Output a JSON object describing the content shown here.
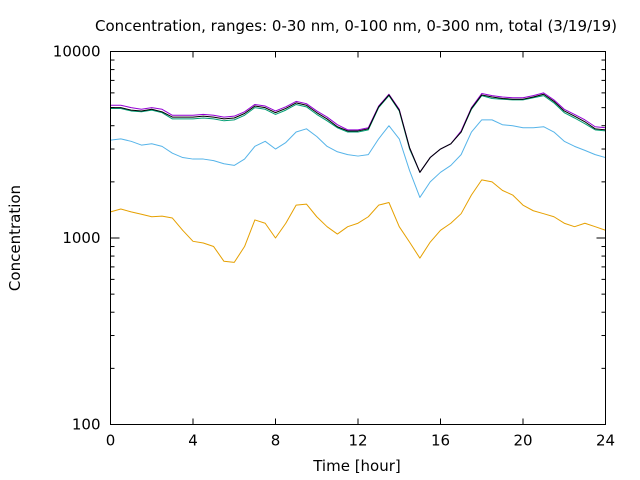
{
  "chart_data": {
    "type": "line",
    "title": "Concentration, ranges: 0-30 nm, 0-100 nm, 0-300 nm, total (3/19/19)",
    "xlabel": "Time [hour]",
    "ylabel": "Concentration",
    "xlim": [
      0,
      24
    ],
    "ylim": [
      100,
      10000
    ],
    "yscale": "log",
    "grid": false,
    "legend": "none",
    "x_ticks": [
      0,
      4,
      8,
      12,
      16,
      20,
      24
    ],
    "x_tick_labels": [
      "0",
      "4",
      "8",
      "12",
      "16",
      "20",
      "24"
    ],
    "y_ticks": [
      100,
      1000,
      10000
    ],
    "y_tick_labels": [
      "100",
      "1000",
      "10000"
    ],
    "x": [
      0,
      0.5,
      1,
      1.5,
      2,
      2.5,
      3,
      3.5,
      4,
      4.5,
      5,
      5.5,
      6,
      6.5,
      7,
      7.5,
      8,
      8.5,
      9,
      9.5,
      10,
      10.5,
      11,
      11.5,
      12,
      12.5,
      13,
      13.5,
      14,
      14.5,
      15,
      15.5,
      16,
      16.5,
      17,
      17.5,
      18,
      18.5,
      19,
      19.5,
      20,
      20.5,
      21,
      21.5,
      22,
      22.5,
      23,
      23.5,
      24
    ],
    "series": [
      {
        "color": "#e6a000",
        "values": [
          1380,
          1430,
          1380,
          1340,
          1300,
          1310,
          1280,
          1100,
          960,
          940,
          900,
          750,
          740,
          900,
          1250,
          1200,
          1000,
          1200,
          1500,
          1520,
          1300,
          1150,
          1050,
          1150,
          1200,
          1300,
          1500,
          1550,
          1150,
          950,
          780,
          950,
          1100,
          1200,
          1350,
          1700,
          2050,
          2000,
          1800,
          1700,
          1500,
          1400,
          1350,
          1300,
          1200,
          1150,
          1200,
          1150,
          1100
        ]
      },
      {
        "color": "#56b4e9",
        "values": [
          3350,
          3400,
          3300,
          3150,
          3200,
          3100,
          2850,
          2700,
          2650,
          2650,
          2600,
          2500,
          2450,
          2650,
          3100,
          3300,
          3000,
          3250,
          3700,
          3850,
          3500,
          3100,
          2900,
          2800,
          2750,
          2800,
          3400,
          4000,
          3400,
          2300,
          1650,
          2000,
          2250,
          2450,
          2800,
          3700,
          4300,
          4300,
          4050,
          4000,
          3900,
          3900,
          3950,
          3700,
          3300,
          3100,
          2950,
          2800,
          2700
        ]
      },
      {
        "color": "#009e73",
        "values": [
          4950,
          4950,
          4800,
          4750,
          4850,
          4700,
          4350,
          4350,
          4350,
          4400,
          4350,
          4250,
          4300,
          4550,
          5000,
          4900,
          4600,
          4850,
          5200,
          5050,
          4600,
          4250,
          3900,
          3700,
          3700,
          3800,
          5000,
          5800,
          4800,
          3000,
          2250,
          2700,
          3000,
          3200,
          3700,
          4900,
          5800,
          5600,
          5550,
          5500,
          5500,
          5650,
          5800,
          5300,
          4700,
          4400,
          4100,
          3800,
          3750
        ]
      },
      {
        "color": "#9400d3",
        "values": [
          5150,
          5150,
          5000,
          4900,
          5000,
          4900,
          4550,
          4550,
          4550,
          4600,
          4550,
          4450,
          4500,
          4750,
          5200,
          5100,
          4800,
          5050,
          5400,
          5250,
          4800,
          4450,
          4050,
          3800,
          3800,
          3900,
          5100,
          5900,
          4900,
          3050,
          2250,
          2700,
          3000,
          3200,
          3750,
          5000,
          5950,
          5800,
          5700,
          5650,
          5650,
          5800,
          6000,
          5500,
          4900,
          4600,
          4300,
          3950,
          3900
        ]
      },
      {
        "color": "#000000",
        "values": [
          5000,
          5000,
          4850,
          4800,
          4900,
          4750,
          4450,
          4450,
          4450,
          4500,
          4450,
          4350,
          4400,
          4650,
          5100,
          5000,
          4700,
          4950,
          5300,
          5150,
          4700,
          4350,
          3950,
          3750,
          3750,
          3850,
          5050,
          5850,
          4850,
          3050,
          2250,
          2700,
          3000,
          3200,
          3700,
          4950,
          5850,
          5700,
          5600,
          5550,
          5550,
          5700,
          5900,
          5400,
          4800,
          4500,
          4200,
          3850,
          3800
        ]
      }
    ]
  }
}
